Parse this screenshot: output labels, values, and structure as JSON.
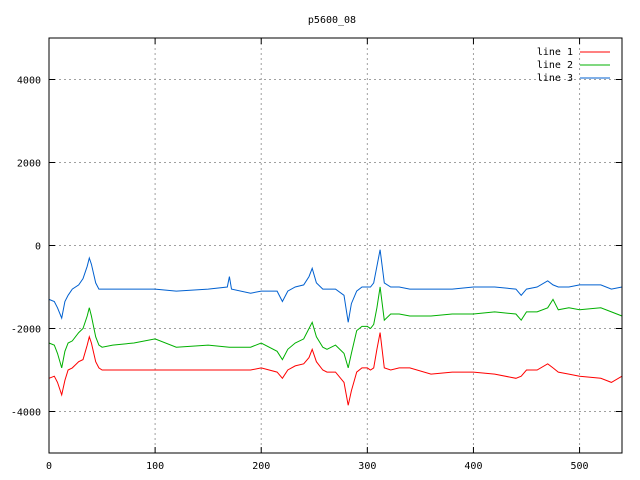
{
  "chart_data": {
    "type": "line",
    "title": "p5600_08",
    "xlabel": "",
    "ylabel": "",
    "xlim": [
      0,
      540
    ],
    "ylim": [
      -5000,
      5000
    ],
    "xticks": [
      0,
      100,
      200,
      300,
      400,
      500
    ],
    "yticks": [
      -4000,
      -2000,
      0,
      2000,
      4000
    ],
    "grid": true,
    "legend_position": "top-right",
    "series": [
      {
        "name": "line 1",
        "color": "#ff0000",
        "x": [
          0,
          5,
          8,
          12,
          15,
          18,
          22,
          28,
          32,
          36,
          38,
          40,
          44,
          47,
          50,
          60,
          80,
          100,
          120,
          150,
          170,
          190,
          200,
          215,
          220,
          225,
          232,
          240,
          245,
          248,
          252,
          258,
          262,
          270,
          278,
          282,
          285,
          290,
          295,
          300,
          303,
          306,
          309,
          312,
          316,
          322,
          330,
          340,
          360,
          380,
          400,
          420,
          440,
          445,
          450,
          460,
          470,
          475,
          480,
          490,
          500,
          520,
          530,
          540
        ],
        "y": [
          -3200,
          -3150,
          -3300,
          -3600,
          -3250,
          -3000,
          -2950,
          -2800,
          -2750,
          -2400,
          -2200,
          -2350,
          -2800,
          -2950,
          -3000,
          -3000,
          -3000,
          -3000,
          -3000,
          -3000,
          -3000,
          -3000,
          -2950,
          -3050,
          -3200,
          -3000,
          -2900,
          -2850,
          -2700,
          -2500,
          -2800,
          -3000,
          -3050,
          -3050,
          -3300,
          -3850,
          -3500,
          -3050,
          -2950,
          -2950,
          -3000,
          -2950,
          -2500,
          -2100,
          -2950,
          -3000,
          -2950,
          -2950,
          -3100,
          -3050,
          -3050,
          -3100,
          -3200,
          -3150,
          -3000,
          -3000,
          -2850,
          -2950,
          -3050,
          -3100,
          -3150,
          -3200,
          -3300,
          -3150
        ]
      },
      {
        "name": "line 2",
        "color": "#00b000",
        "x": [
          0,
          5,
          8,
          12,
          15,
          18,
          22,
          28,
          32,
          36,
          38,
          40,
          44,
          47,
          50,
          60,
          80,
          100,
          120,
          150,
          170,
          190,
          200,
          215,
          220,
          225,
          232,
          240,
          245,
          248,
          252,
          258,
          262,
          270,
          278,
          282,
          285,
          290,
          295,
          300,
          303,
          306,
          309,
          312,
          316,
          322,
          330,
          340,
          360,
          380,
          400,
          420,
          440,
          445,
          450,
          460,
          470,
          475,
          480,
          490,
          500,
          520,
          530,
          540
        ],
        "y": [
          -2350,
          -2400,
          -2600,
          -2950,
          -2550,
          -2350,
          -2300,
          -2100,
          -2000,
          -1700,
          -1500,
          -1700,
          -2200,
          -2400,
          -2450,
          -2400,
          -2350,
          -2250,
          -2450,
          -2400,
          -2450,
          -2450,
          -2350,
          -2550,
          -2750,
          -2500,
          -2350,
          -2250,
          -2000,
          -1850,
          -2200,
          -2450,
          -2500,
          -2400,
          -2600,
          -2950,
          -2600,
          -2050,
          -1950,
          -1950,
          -2000,
          -1900,
          -1500,
          -1000,
          -1800,
          -1650,
          -1650,
          -1700,
          -1700,
          -1650,
          -1650,
          -1600,
          -1650,
          -1800,
          -1600,
          -1600,
          -1500,
          -1300,
          -1550,
          -1500,
          -1550,
          -1500,
          -1600,
          -1700
        ]
      },
      {
        "name": "line 3",
        "color": "#0060d0",
        "x": [
          0,
          5,
          8,
          12,
          15,
          18,
          22,
          28,
          32,
          36,
          38,
          40,
          44,
          47,
          50,
          60,
          80,
          100,
          120,
          150,
          168,
          170,
          172,
          190,
          200,
          215,
          220,
          225,
          232,
          240,
          245,
          248,
          252,
          258,
          262,
          270,
          278,
          282,
          285,
          290,
          295,
          300,
          303,
          306,
          309,
          312,
          316,
          322,
          330,
          340,
          360,
          380,
          400,
          420,
          440,
          445,
          450,
          460,
          470,
          475,
          480,
          490,
          500,
          520,
          530,
          540
        ],
        "y": [
          -1300,
          -1350,
          -1500,
          -1750,
          -1350,
          -1200,
          -1050,
          -950,
          -800,
          -500,
          -300,
          -450,
          -900,
          -1050,
          -1050,
          -1050,
          -1050,
          -1050,
          -1100,
          -1050,
          -1000,
          -750,
          -1050,
          -1150,
          -1100,
          -1100,
          -1350,
          -1100,
          -1000,
          -950,
          -750,
          -550,
          -900,
          -1050,
          -1050,
          -1050,
          -1200,
          -1850,
          -1400,
          -1100,
          -1000,
          -1000,
          -1000,
          -900,
          -500,
          -100,
          -900,
          -1000,
          -1000,
          -1050,
          -1050,
          -1050,
          -1000,
          -1000,
          -1050,
          -1200,
          -1050,
          -1000,
          -850,
          -950,
          -1000,
          -1000,
          -950,
          -950,
          -1050,
          -1000
        ]
      }
    ]
  }
}
